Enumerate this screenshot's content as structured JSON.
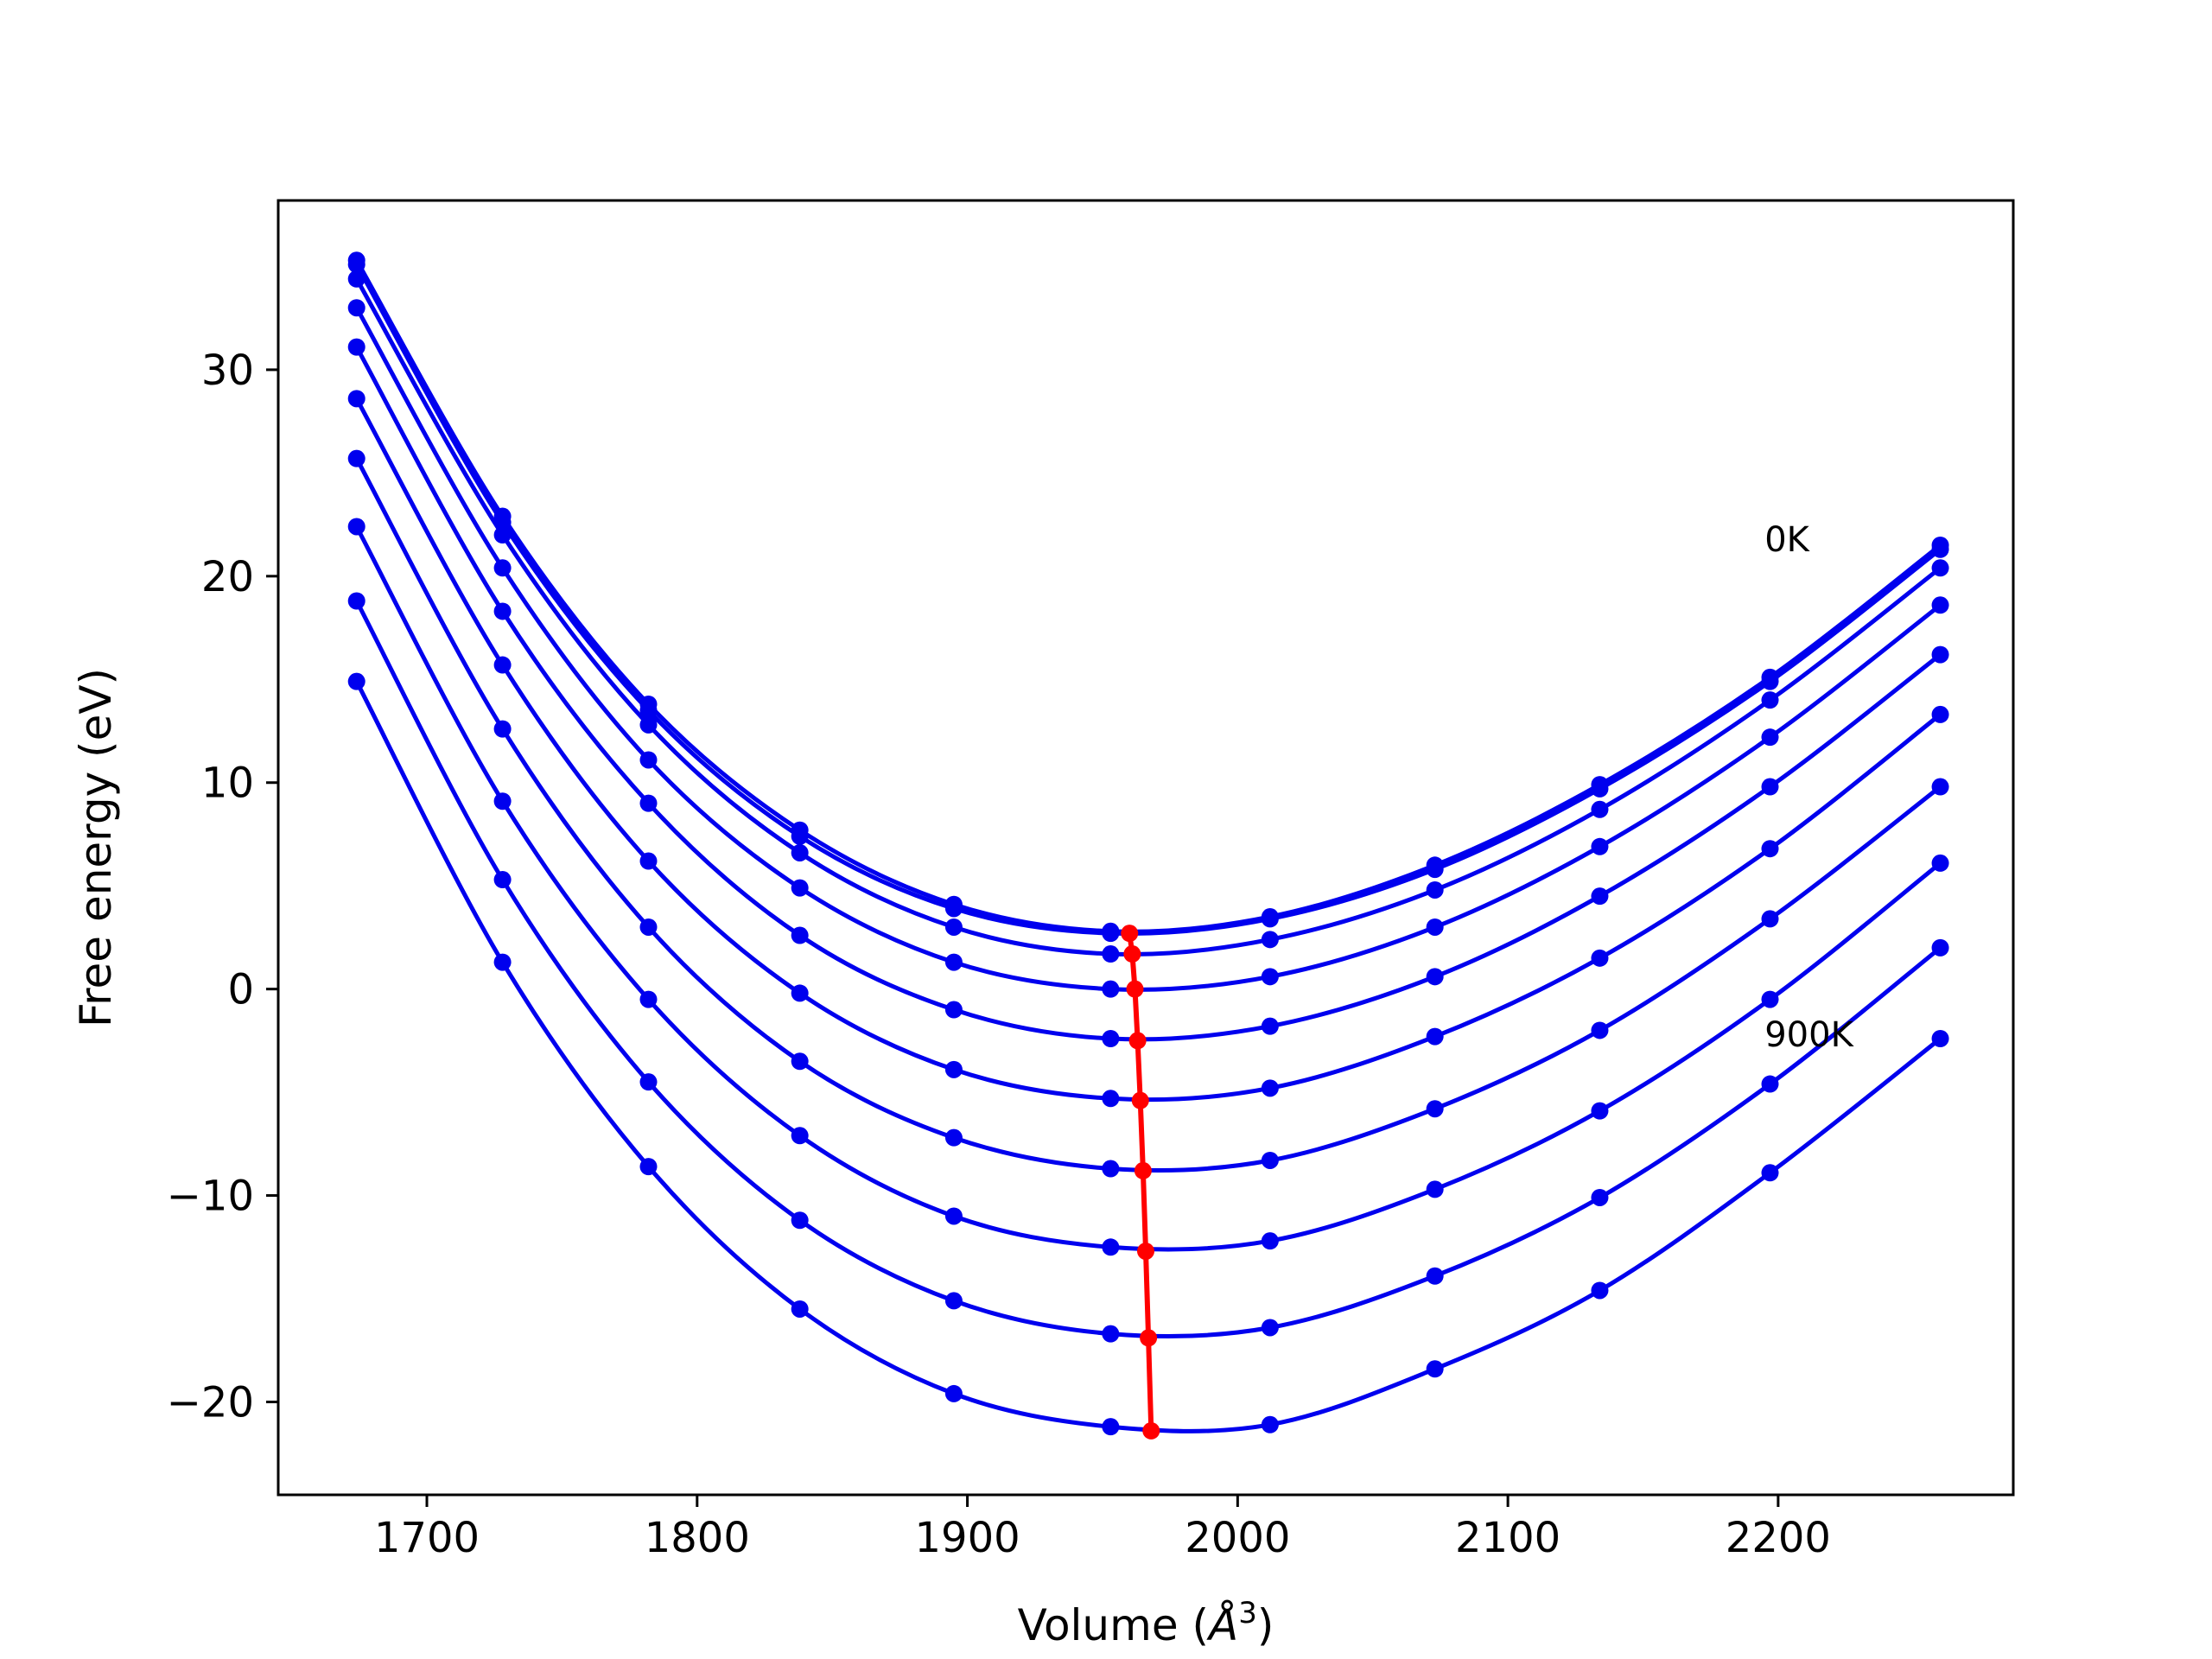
{
  "chart_data": {
    "type": "line",
    "title": "",
    "xlabel": "Volume (",
    "xlabel_symbol": "Å",
    "xlabel_exp": "3",
    "xlabel_close": ")",
    "ylabel": "Free energy (eV)",
    "xlim": [
      1645,
      2287
    ],
    "ylim": [
      -24.5,
      38.2
    ],
    "xticks": [
      1700,
      1800,
      1900,
      2000,
      2100,
      2200
    ],
    "yticks": [
      -20,
      -10,
      0,
      10,
      20,
      30
    ],
    "xtick_labels": [
      "1700",
      "1800",
      "1900",
      "2000",
      "2100",
      "2200"
    ],
    "ytick_labels": [
      "−20",
      "−10",
      "0",
      "10",
      "20",
      "30"
    ],
    "grid": false,
    "legend": "none",
    "annotations": [
      {
        "text": "0K",
        "x": 2195,
        "y": 21.8
      },
      {
        "text": "900K",
        "x": 2195,
        "y": -2.2
      }
    ],
    "series_color": "#0000ee",
    "minimum_color": "#ff0000",
    "volumes": [
      1674,
      1728,
      1782,
      1838,
      1895,
      1953,
      2012,
      2073,
      2134,
      2197,
      2260
    ],
    "series": [
      {
        "values": [
          35.3,
          22.9,
          13.8,
          7.7,
          4.1,
          2.8,
          3.5,
          6.0,
          9.9,
          15.1,
          21.5
        ]
      },
      {
        "values": [
          35.1,
          22.6,
          13.5,
          7.4,
          3.9,
          2.7,
          3.4,
          5.8,
          9.7,
          14.9,
          21.3
        ]
      },
      {
        "values": [
          34.4,
          22.0,
          12.8,
          6.6,
          3.0,
          1.7,
          2.4,
          4.8,
          8.7,
          14.0,
          20.4
        ]
      },
      {
        "values": [
          33.0,
          20.4,
          11.1,
          4.9,
          1.3,
          0.0,
          0.6,
          3.0,
          6.9,
          12.2,
          18.6
        ]
      },
      {
        "values": [
          31.1,
          18.3,
          9.0,
          2.6,
          -1.0,
          -2.4,
          -1.8,
          0.6,
          4.5,
          9.8,
          16.2
        ]
      },
      {
        "values": [
          28.6,
          15.7,
          6.2,
          -0.2,
          -3.9,
          -5.3,
          -4.8,
          -2.3,
          1.5,
          6.8,
          13.3
        ]
      },
      {
        "values": [
          25.7,
          12.6,
          3.0,
          -3.5,
          -7.2,
          -8.7,
          -8.3,
          -5.8,
          -2.0,
          3.4,
          9.8
        ]
      },
      {
        "values": [
          22.4,
          9.1,
          -0.5,
          -7.1,
          -11.0,
          -12.5,
          -12.2,
          -9.7,
          -5.9,
          -0.5,
          6.1
        ]
      },
      {
        "values": [
          18.8,
          5.3,
          -4.5,
          -11.2,
          -15.1,
          -16.7,
          -16.4,
          -13.9,
          -10.1,
          -4.6,
          2.0
        ]
      },
      {
        "values": [
          14.9,
          1.3,
          -8.6,
          -15.5,
          -19.6,
          -21.2,
          -21.1,
          -18.4,
          -14.6,
          -8.9,
          -2.4
        ]
      }
    ],
    "minimum_line": {
      "x": [
        1960,
        1961,
        1962,
        1963,
        1964,
        1965,
        1966,
        1967,
        1968
      ],
      "y": [
        2.7,
        1.7,
        0.0,
        -2.5,
        -5.4,
        -8.8,
        -12.7,
        -16.9,
        -21.4
      ]
    }
  }
}
